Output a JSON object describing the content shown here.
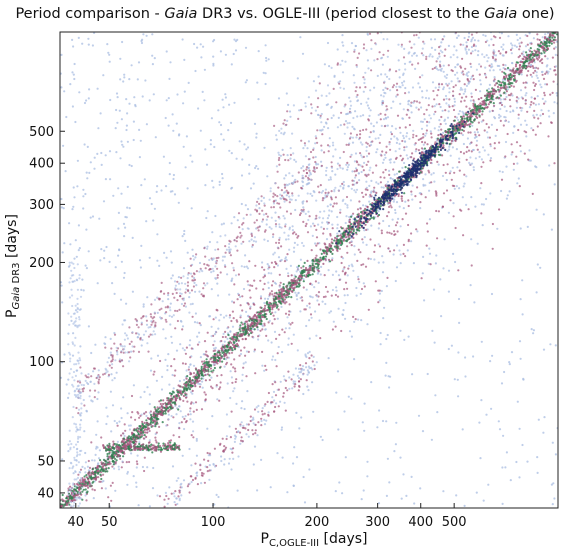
{
  "chart_data": {
    "type": "scatter",
    "title_parts": {
      "prefix": "Period comparison - ",
      "gaia": "Gaia",
      "middle": " DR3 vs. OGLE-III (period closest to the ",
      "gaia2": "Gaia",
      "suffix": " one)"
    },
    "xlabel_parts": {
      "main": "P",
      "sub": "C,OGLE-III",
      "unit": " [days]"
    },
    "ylabel_parts": {
      "main": "P",
      "sub_italic": "Gaia",
      "sub": " DR3",
      "unit": " [days]"
    },
    "x_scale": "log",
    "y_scale": "log",
    "xlim": [
      36,
      1000
    ],
    "ylim": [
      36,
      1000
    ],
    "x_ticks": [
      40,
      50,
      100,
      200,
      300,
      400,
      500
    ],
    "y_ticks": [
      40,
      50,
      100,
      200,
      300,
      400,
      500
    ],
    "x_tick_labels": [
      "40",
      "50",
      "100",
      "200",
      "300",
      "400",
      "500"
    ],
    "y_tick_labels": [
      "40",
      "50",
      "100",
      "200",
      "300",
      "400",
      "500"
    ],
    "grid": false,
    "colors": {
      "sparse": "#a9bde2",
      "medium": "#a5577e",
      "dense": "#2f7f50",
      "densest": "#1d2f6e"
    },
    "features": {
      "main_diagonal": {
        "relation": "y = x",
        "x_range": [
          36,
          1000
        ]
      },
      "horizontal_branch": {
        "y": 55,
        "x_range": [
          48,
          80
        ]
      },
      "lower_branch": {
        "relation": "y ≈ x/2",
        "x_range": [
          36,
          200
        ]
      },
      "upper_branch": {
        "relation": "y ≈ 2x",
        "x_range": [
          40,
          200
        ]
      },
      "dense_clump": {
        "x": 360,
        "y": 360
      }
    }
  }
}
